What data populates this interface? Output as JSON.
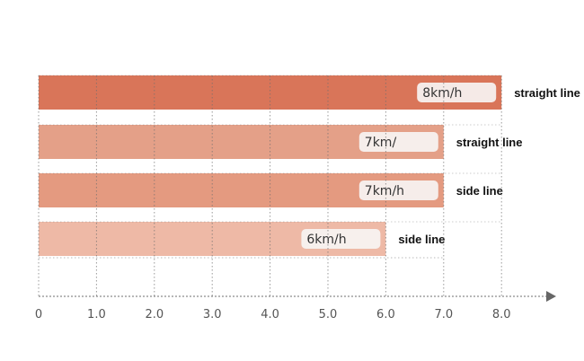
{
  "chart_data": {
    "type": "bar",
    "orientation": "horizontal",
    "title": "",
    "xlabel": "",
    "ylabel": "",
    "xlim": [
      0,
      8.0
    ],
    "x_ticks": [
      "0",
      "1.0",
      "2.0",
      "3.0",
      "4.0",
      "5.0",
      "6.0",
      "7.0",
      "8.0"
    ],
    "grid": "vertical dotted",
    "bars": [
      {
        "value": 8,
        "label": "8km/h",
        "annotation": "straight line",
        "color": "#D97559"
      },
      {
        "value": 7,
        "label": "7km/",
        "annotation": "straight line",
        "color": "#E4A088"
      },
      {
        "value": 7,
        "label": "7km/h",
        "annotation": "side line",
        "color": "#E49A80"
      },
      {
        "value": 6,
        "label": "6km/h",
        "annotation": "side line",
        "color": "#EEB9A6"
      }
    ]
  }
}
